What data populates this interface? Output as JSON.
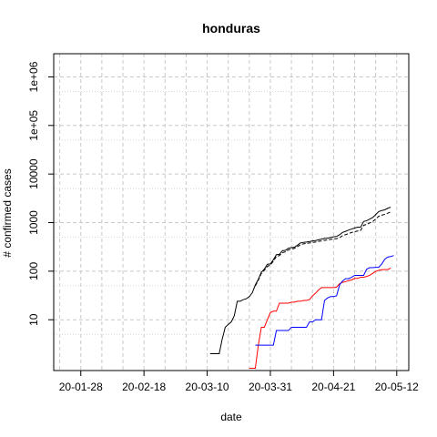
{
  "chart_data": {
    "type": "line",
    "title": "honduras",
    "xlabel": "date",
    "ylabel": "# confirmed cases",
    "y_scale": "log",
    "y_ticks": [
      10,
      100,
      1000,
      10000,
      100000,
      1000000
    ],
    "y_tick_labels": [
      "10",
      "100",
      "1000",
      "10000",
      "1e+05",
      "1e+06"
    ],
    "x_ticks": [
      "2020-01-28",
      "2020-02-18",
      "2020-03-10",
      "2020-03-31",
      "2020-04-21",
      "2020-05-12"
    ],
    "x_tick_labels": [
      "20-01-28",
      "20-02-18",
      "20-03-10",
      "20-03-31",
      "20-04-21",
      "20-05-12"
    ],
    "xlim": [
      "2020-01-19",
      "2020-05-16"
    ],
    "ylim": [
      0.9,
      3000000
    ],
    "grid": true,
    "series": [
      {
        "color": "#000000",
        "dash": "solid",
        "points": [
          [
            "2020-03-11",
            2
          ],
          [
            "2020-03-12",
            2
          ],
          [
            "2020-03-13",
            2
          ],
          [
            "2020-03-14",
            2
          ],
          [
            "2020-03-15",
            4
          ],
          [
            "2020-03-16",
            7
          ],
          [
            "2020-03-17",
            8
          ],
          [
            "2020-03-18",
            9
          ],
          [
            "2020-03-19",
            12
          ],
          [
            "2020-03-20",
            24
          ],
          [
            "2020-03-21",
            24
          ],
          [
            "2020-03-22",
            26
          ],
          [
            "2020-03-23",
            27
          ],
          [
            "2020-03-24",
            30
          ],
          [
            "2020-03-25",
            36
          ],
          [
            "2020-03-26",
            52
          ],
          [
            "2020-03-27",
            68
          ],
          [
            "2020-03-28",
            95
          ],
          [
            "2020-03-29",
            110
          ],
          [
            "2020-03-30",
            139
          ],
          [
            "2020-03-31",
            141
          ],
          [
            "2020-04-01",
            172
          ],
          [
            "2020-04-02",
            219
          ],
          [
            "2020-04-03",
            222
          ],
          [
            "2020-04-04",
            264
          ],
          [
            "2020-04-05",
            268
          ],
          [
            "2020-04-06",
            298
          ],
          [
            "2020-04-07",
            305
          ],
          [
            "2020-04-08",
            312
          ],
          [
            "2020-04-09",
            343
          ],
          [
            "2020-04-10",
            382
          ],
          [
            "2020-04-11",
            392
          ],
          [
            "2020-04-12",
            397
          ],
          [
            "2020-04-13",
            407
          ],
          [
            "2020-04-14",
            419
          ],
          [
            "2020-04-15",
            426
          ],
          [
            "2020-04-16",
            442
          ],
          [
            "2020-04-17",
            457
          ],
          [
            "2020-04-18",
            472
          ],
          [
            "2020-04-19",
            477
          ],
          [
            "2020-04-20",
            494
          ],
          [
            "2020-04-21",
            510
          ],
          [
            "2020-04-22",
            519
          ],
          [
            "2020-04-23",
            562
          ],
          [
            "2020-04-24",
            627
          ],
          [
            "2020-04-25",
            661
          ],
          [
            "2020-04-26",
            702
          ],
          [
            "2020-04-27",
            738
          ],
          [
            "2020-04-28",
            771
          ],
          [
            "2020-04-29",
            804
          ],
          [
            "2020-04-30",
            804
          ],
          [
            "2020-05-01",
            1055
          ],
          [
            "2020-05-02",
            1094
          ],
          [
            "2020-05-03",
            1178
          ],
          [
            "2020-05-04",
            1270
          ],
          [
            "2020-05-05",
            1461
          ],
          [
            "2020-05-06",
            1685
          ],
          [
            "2020-05-07",
            1771
          ],
          [
            "2020-05-08",
            1830
          ],
          [
            "2020-05-09",
            1972
          ],
          [
            "2020-05-10",
            2080
          ]
        ]
      },
      {
        "color": "#000000",
        "dash": "dashed",
        "points": [
          [
            "2020-03-26",
            50
          ],
          [
            "2020-03-27",
            65
          ],
          [
            "2020-03-28",
            90
          ],
          [
            "2020-03-29",
            105
          ],
          [
            "2020-03-30",
            125
          ],
          [
            "2020-03-31",
            135
          ],
          [
            "2020-04-01",
            160
          ],
          [
            "2020-04-02",
            200
          ],
          [
            "2020-04-03",
            210
          ],
          [
            "2020-04-04",
            240
          ],
          [
            "2020-04-05",
            250
          ],
          [
            "2020-04-06",
            275
          ],
          [
            "2020-04-07",
            285
          ],
          [
            "2020-04-08",
            295
          ],
          [
            "2020-04-09",
            320
          ],
          [
            "2020-04-10",
            350
          ],
          [
            "2020-04-11",
            365
          ],
          [
            "2020-04-12",
            372
          ],
          [
            "2020-04-13",
            380
          ],
          [
            "2020-04-14",
            390
          ],
          [
            "2020-04-15",
            398
          ],
          [
            "2020-04-16",
            410
          ],
          [
            "2020-04-17",
            420
          ],
          [
            "2020-04-18",
            432
          ],
          [
            "2020-04-19",
            440
          ],
          [
            "2020-04-20",
            450
          ],
          [
            "2020-04-21",
            460
          ],
          [
            "2020-04-22",
            468
          ],
          [
            "2020-04-23",
            490
          ],
          [
            "2020-04-24",
            540
          ],
          [
            "2020-04-25",
            565
          ],
          [
            "2020-04-26",
            595
          ],
          [
            "2020-04-27",
            625
          ],
          [
            "2020-04-28",
            650
          ],
          [
            "2020-04-29",
            670
          ],
          [
            "2020-04-30",
            690
          ],
          [
            "2020-05-01",
            880
          ],
          [
            "2020-05-02",
            920
          ],
          [
            "2020-05-03",
            980
          ],
          [
            "2020-05-04",
            1050
          ],
          [
            "2020-05-05",
            1180
          ],
          [
            "2020-05-06",
            1350
          ],
          [
            "2020-05-07",
            1420
          ],
          [
            "2020-05-08",
            1480
          ],
          [
            "2020-05-09",
            1560
          ],
          [
            "2020-05-10",
            1660
          ]
        ]
      },
      {
        "color": "#ff0000",
        "dash": "solid",
        "points": [
          [
            "2020-03-24",
            1
          ],
          [
            "2020-03-25",
            1
          ],
          [
            "2020-03-26",
            1
          ],
          [
            "2020-03-27",
            3
          ],
          [
            "2020-03-28",
            7
          ],
          [
            "2020-03-29",
            7
          ],
          [
            "2020-03-30",
            10
          ],
          [
            "2020-03-31",
            14
          ],
          [
            "2020-04-01",
            15
          ],
          [
            "2020-04-02",
            15
          ],
          [
            "2020-04-03",
            22
          ],
          [
            "2020-04-04",
            22
          ],
          [
            "2020-04-05",
            22
          ],
          [
            "2020-04-06",
            22
          ],
          [
            "2020-04-07",
            23
          ],
          [
            "2020-04-08",
            23
          ],
          [
            "2020-04-09",
            24
          ],
          [
            "2020-04-10",
            24
          ],
          [
            "2020-04-11",
            25
          ],
          [
            "2020-04-12",
            25
          ],
          [
            "2020-04-13",
            26
          ],
          [
            "2020-04-14",
            31
          ],
          [
            "2020-04-15",
            35
          ],
          [
            "2020-04-16",
            41
          ],
          [
            "2020-04-17",
            46
          ],
          [
            "2020-04-18",
            46
          ],
          [
            "2020-04-19",
            46
          ],
          [
            "2020-04-20",
            46
          ],
          [
            "2020-04-21",
            46
          ],
          [
            "2020-04-22",
            47
          ],
          [
            "2020-04-23",
            55
          ],
          [
            "2020-04-24",
            59
          ],
          [
            "2020-04-25",
            61
          ],
          [
            "2020-04-26",
            64
          ],
          [
            "2020-04-27",
            66
          ],
          [
            "2020-04-28",
            71
          ],
          [
            "2020-04-29",
            71
          ],
          [
            "2020-04-30",
            75
          ],
          [
            "2020-05-01",
            75
          ],
          [
            "2020-05-02",
            78
          ],
          [
            "2020-05-03",
            82
          ],
          [
            "2020-05-04",
            90
          ],
          [
            "2020-05-05",
            99
          ],
          [
            "2020-05-06",
            104
          ],
          [
            "2020-05-07",
            107
          ],
          [
            "2020-05-08",
            108
          ],
          [
            "2020-05-09",
            108
          ],
          [
            "2020-05-10",
            116
          ]
        ]
      },
      {
        "color": "#0000ff",
        "dash": "solid",
        "points": [
          [
            "2020-03-26",
            3
          ],
          [
            "2020-03-27",
            3
          ],
          [
            "2020-03-28",
            3
          ],
          [
            "2020-03-29",
            3
          ],
          [
            "2020-03-30",
            3
          ],
          [
            "2020-03-31",
            3
          ],
          [
            "2020-04-01",
            3
          ],
          [
            "2020-04-02",
            6
          ],
          [
            "2020-04-03",
            6
          ],
          [
            "2020-04-04",
            6
          ],
          [
            "2020-04-05",
            6
          ],
          [
            "2020-04-06",
            6
          ],
          [
            "2020-04-07",
            7
          ],
          [
            "2020-04-08",
            7
          ],
          [
            "2020-04-09",
            7
          ],
          [
            "2020-04-10",
            7
          ],
          [
            "2020-04-11",
            7
          ],
          [
            "2020-04-12",
            7
          ],
          [
            "2020-04-13",
            9
          ],
          [
            "2020-04-14",
            9
          ],
          [
            "2020-04-15",
            10
          ],
          [
            "2020-04-16",
            10
          ],
          [
            "2020-04-17",
            10
          ],
          [
            "2020-04-18",
            25
          ],
          [
            "2020-04-19",
            28
          ],
          [
            "2020-04-20",
            30
          ],
          [
            "2020-04-21",
            30
          ],
          [
            "2020-04-22",
            31
          ],
          [
            "2020-04-23",
            52
          ],
          [
            "2020-04-24",
            63
          ],
          [
            "2020-04-25",
            70
          ],
          [
            "2020-04-26",
            70
          ],
          [
            "2020-04-27",
            75
          ],
          [
            "2020-04-28",
            82
          ],
          [
            "2020-04-29",
            82
          ],
          [
            "2020-04-30",
            82
          ],
          [
            "2020-05-01",
            82
          ],
          [
            "2020-05-02",
            110
          ],
          [
            "2020-05-03",
            118
          ],
          [
            "2020-05-04",
            118
          ],
          [
            "2020-05-05",
            120
          ],
          [
            "2020-05-06",
            120
          ],
          [
            "2020-05-07",
            140
          ],
          [
            "2020-05-08",
            175
          ],
          [
            "2020-05-09",
            195
          ],
          [
            "2020-05-10",
            200
          ],
          [
            "2020-05-11",
            210
          ]
        ]
      }
    ]
  }
}
